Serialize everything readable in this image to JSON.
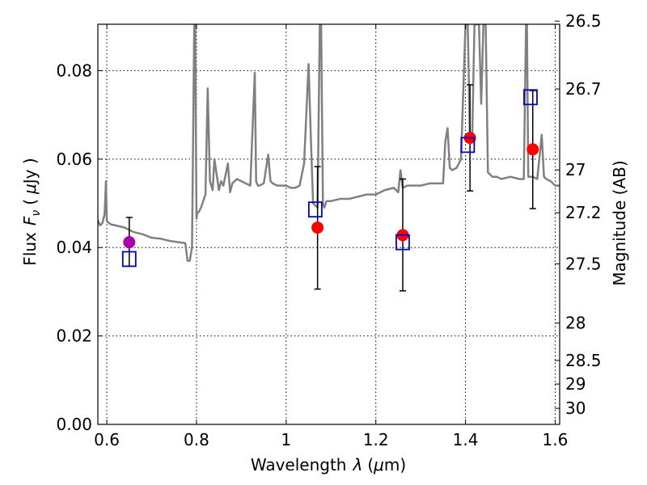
{
  "chart_data": {
    "type": "scatter",
    "xlabel": "Wavelength",
    "xlabel_symbol": "λ",
    "xlabel_unit_open": "(",
    "xlabel_unit_mu": "μ",
    "xlabel_unit_rest": "m)",
    "ylabel": "Flux",
    "ylabel_symbol": "F",
    "ylabel_symbol_sub": "ν",
    "ylabel_unit_open": "(",
    "ylabel_unit_mu": "μ",
    "ylabel_unit_rest": "Jy )",
    "y2label": "Magnitude (AB)",
    "xlim": [
      0.58,
      1.61
    ],
    "ylim": [
      0.0,
      0.0905
    ],
    "x_ticks": [
      0.6,
      0.8,
      1.0,
      1.2,
      1.4,
      1.6
    ],
    "x_tick_labels": [
      "0.6",
      "0.8",
      "1",
      "1.2",
      "1.4",
      "1.6"
    ],
    "y_ticks": [
      0.0,
      0.02,
      0.04,
      0.06,
      0.08
    ],
    "y_tick_labels": [
      "0.00",
      "0.02",
      "0.04",
      "0.06",
      "0.08"
    ],
    "y2_ticks": [
      26.5,
      26.7,
      27,
      27.2,
      27.5,
      28,
      28.5,
      29,
      30
    ],
    "y2_tick_labels": [
      "26.5",
      "26.7",
      "27",
      "27.2",
      "27.5",
      "28",
      "28.5",
      "29",
      "30"
    ],
    "grid": true,
    "colors": {
      "model": "#808080",
      "observed": "#ff0000",
      "observed_first": "#aa00aa",
      "model_band": "#0000cc",
      "errorbar": "#000000"
    },
    "model_spectrum": {
      "x": [
        0.58,
        0.585,
        0.59,
        0.595,
        0.598,
        0.6,
        0.602,
        0.605,
        0.61,
        0.62,
        0.64,
        0.66,
        0.68,
        0.7,
        0.72,
        0.74,
        0.76,
        0.775,
        0.78,
        0.785,
        0.79,
        0.795,
        0.797,
        0.8,
        0.802,
        0.805,
        0.81,
        0.815,
        0.82,
        0.825,
        0.83,
        0.833,
        0.836,
        0.84,
        0.85,
        0.855,
        0.86,
        0.87,
        0.875,
        0.88,
        0.89,
        0.9,
        0.91,
        0.92,
        0.93,
        0.933,
        0.937,
        0.94,
        0.95,
        0.96,
        0.965,
        0.97,
        0.98,
        0.99,
        1.0,
        1.01,
        1.02,
        1.03,
        1.04,
        1.05,
        1.055,
        1.06,
        1.07,
        1.075,
        1.078,
        1.082,
        1.085,
        1.09,
        1.1,
        1.12,
        1.14,
        1.16,
        1.18,
        1.2,
        1.22,
        1.24,
        1.25,
        1.255,
        1.26,
        1.27,
        1.28,
        1.3,
        1.32,
        1.34,
        1.35,
        1.355,
        1.36,
        1.365,
        1.37,
        1.38,
        1.39,
        1.4,
        1.405,
        1.41,
        1.415,
        1.42,
        1.43,
        1.435,
        1.44,
        1.445,
        1.45,
        1.46,
        1.47,
        1.48,
        1.5,
        1.52,
        1.53,
        1.535,
        1.537,
        1.54,
        1.545,
        1.55,
        1.56,
        1.57,
        1.575,
        1.58,
        1.59,
        1.6,
        1.61
      ],
      "y": [
        0.0462,
        0.045,
        0.0455,
        0.0475,
        0.055,
        0.046,
        0.0458,
        0.0455,
        0.0452,
        0.045,
        0.0445,
        0.0435,
        0.043,
        0.0422,
        0.042,
        0.0415,
        0.0412,
        0.041,
        0.037,
        0.037,
        0.04,
        0.0905,
        0.0905,
        0.0465,
        0.048,
        0.048,
        0.049,
        0.0505,
        0.052,
        0.076,
        0.055,
        0.054,
        0.053,
        0.06,
        0.053,
        0.055,
        0.054,
        0.059,
        0.0525,
        0.0545,
        0.0555,
        0.055,
        0.0545,
        0.054,
        0.0795,
        0.055,
        0.054,
        0.054,
        0.0545,
        0.061,
        0.055,
        0.0545,
        0.054,
        0.054,
        0.054,
        0.0535,
        0.0535,
        0.054,
        0.059,
        0.0815,
        0.065,
        0.05,
        0.049,
        0.0905,
        0.0905,
        0.05,
        0.049,
        0.0505,
        0.0505,
        0.051,
        0.051,
        0.0515,
        0.052,
        0.052,
        0.053,
        0.0535,
        0.0525,
        0.0575,
        0.0535,
        0.054,
        0.054,
        0.054,
        0.0545,
        0.0545,
        0.0545,
        0.064,
        0.067,
        0.058,
        0.0575,
        0.058,
        0.06,
        0.0905,
        0.0905,
        0.064,
        0.065,
        0.0905,
        0.0905,
        0.0725,
        0.0905,
        0.0905,
        0.057,
        0.056,
        0.056,
        0.0555,
        0.056,
        0.0555,
        0.0555,
        0.0905,
        0.0905,
        0.056,
        0.056,
        0.056,
        0.0555,
        0.0655,
        0.056,
        0.0555,
        0.055,
        0.054,
        0.054
      ]
    },
    "observed": {
      "x": [
        0.65,
        1.07,
        1.26,
        1.41,
        1.55
      ],
      "y": [
        0.0412,
        0.0445,
        0.0428,
        0.0648,
        0.0622
      ],
      "err_low": [
        0.0358,
        0.0306,
        0.0302,
        0.0528,
        0.0488
      ],
      "err_high": [
        0.0468,
        0.0583,
        0.0555,
        0.0768,
        0.0755
      ]
    },
    "model_band": {
      "x": [
        0.65,
        1.065,
        1.26,
        1.405,
        1.545
      ],
      "y": [
        0.0374,
        0.0486,
        0.0412,
        0.0632,
        0.074
      ]
    }
  }
}
